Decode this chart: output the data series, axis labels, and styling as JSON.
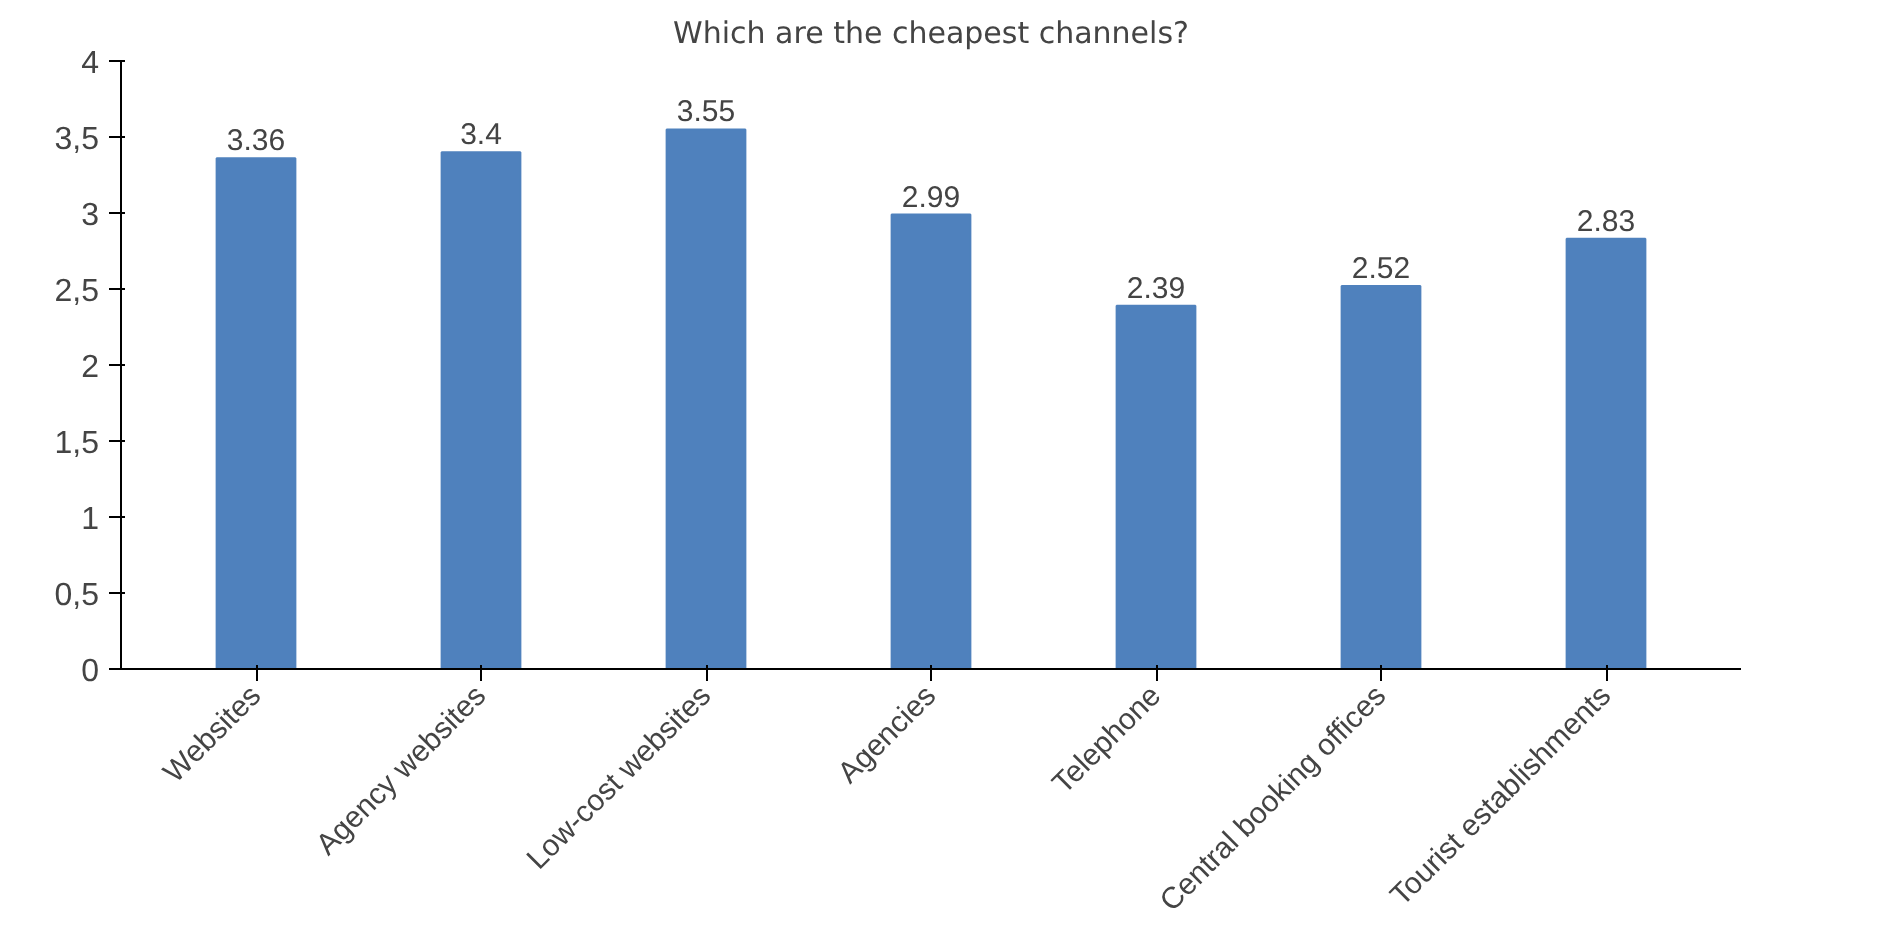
{
  "chart_data": {
    "type": "bar",
    "title": "Which are the cheapest channels?",
    "categories": [
      "Websites",
      "Agency websites",
      "Low-cost websites",
      "Agencies",
      "Telephone",
      "Central booking offices",
      "Tourist establishments"
    ],
    "values": [
      3.36,
      3.4,
      3.55,
      2.99,
      2.39,
      2.52,
      2.83
    ],
    "color": "#4f81bd",
    "data_labels": true,
    "grid": false,
    "ylim": [
      0,
      4
    ],
    "yticks": [
      0,
      {
        "value": 0.5,
        "label": "0,5"
      },
      1,
      {
        "value": 1.5,
        "label": "1,5"
      },
      2,
      {
        "value": 2.5,
        "label": "2,5"
      },
      3,
      {
        "value": 3.5,
        "label": "3,5"
      },
      4
    ]
  }
}
